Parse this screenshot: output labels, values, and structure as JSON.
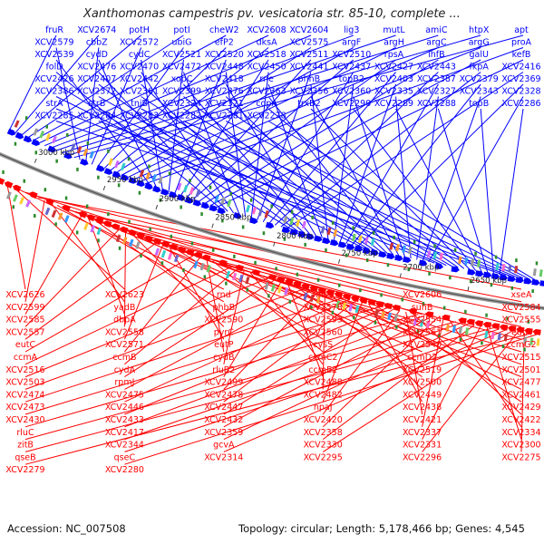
{
  "title": "Xanthomonas campestris pv. vesicatoria str. 85-10, complete ...",
  "footer": {
    "accession": "Accession: NC_007508",
    "stats": "Topology: circular; Length: 5,178,466 bp; Genes: 4,545"
  },
  "colors": {
    "plus_strand": "#0000ff",
    "minus_strand": "#ff0000",
    "backbone": "#777777",
    "rna_marks": "#2e8b2e"
  },
  "ticks": [
    "3000 kbp",
    "2950 kbp",
    "2900 kbp",
    "2850 kbp",
    "2800 kbp",
    "2750 kbp",
    "2700 kbp",
    "2650 kbp"
  ],
  "plus_strand_labels": [
    "fruR",
    "XCV2674",
    "potH",
    "potI",
    "cheW2",
    "XCV2608",
    "XCV2604",
    "lig3",
    "mutL",
    "amiC",
    "htpX",
    "apt",
    "XCV2579",
    "cbbZ",
    "XCV2572",
    "ubiG",
    "efP2",
    "dksA",
    "XCV2575",
    "argF",
    "argH",
    "argC",
    "argG",
    "proA",
    "XCV2539",
    "cydD",
    "cydC",
    "XCV2521",
    "XCV2520",
    "XCV2518",
    "XCV2511",
    "XCV2510",
    "rpsA",
    "ihfB",
    "galU",
    "kefB",
    "folD",
    "XCV2476",
    "XCV2470",
    "XCV2472",
    "XCV2448",
    "XCV2450",
    "XCV2441",
    "XCV2437",
    "XCV2427",
    "XCV2443",
    "fkpA",
    "XCV2416",
    "XCV2426",
    "XCV2407",
    "XCV2442",
    "xopC",
    "XCV2418",
    "rne",
    "phhB",
    "topB2",
    "XCV2403",
    "XCV2387",
    "XCV2379",
    "XCV2369",
    "XCV2386",
    "XCV2372",
    "XCV2361",
    "XCV2399",
    "XCV2376",
    "XCV2363",
    "XCV2356",
    "XCV2360",
    "XCV2335",
    "XCV2327",
    "XCV2343",
    "XCV2328",
    "strA",
    "strB",
    "tniB",
    "XCV2324",
    "XCV2321",
    "copA",
    "trxB2",
    "XCV2290",
    "XCV2289",
    "XCV2288",
    "topB",
    "XCV2286",
    "XCV2285",
    "XCV2284",
    "XCV2283",
    "XCV2282",
    "XCV2281",
    "XCV2278"
  ],
  "minus_strand_labels": [
    "XCV2626",
    "XCV2623",
    "rnd",
    "hns1",
    "XCV2606",
    "xseA",
    "XCV2599",
    "yadB",
    "phbB",
    "XCV2578",
    "suhB",
    "XCV2584",
    "XCV2585",
    "dbpA",
    "XCV2590",
    "XCV2593",
    "XCV2554",
    "XCV2555",
    "XCV2557",
    "XCV2558",
    "pyrC",
    "XCV2560",
    "XCV2561",
    "eutA",
    "eutC",
    "XCV2571",
    "eutP",
    "cysS",
    "XCV2540",
    "ccmG2",
    "ccmA",
    "ccmB",
    "cydB",
    "ccmC2",
    "ccmD2",
    "XCV2515",
    "XCV2516",
    "cydA",
    "rluB2",
    "ccmE2",
    "XCV2519",
    "XCV2501",
    "XCV2503",
    "rpmJ",
    "XCV2499",
    "XCV2488",
    "XCV2500",
    "XCV2477",
    "XCV2474",
    "XCV2475",
    "XCV2478",
    "XCV2482",
    "XCV2449",
    "XCV2461",
    "XCV2473",
    "XCV2446",
    "XCV2447",
    "npaJ",
    "XCV2438",
    "XCV2429",
    "XCV2430",
    "XCV2433",
    "XCV2432",
    "XCV2420",
    "XCV2421",
    "XCV2422",
    "rluC",
    "XCV2417",
    "XCV2359",
    "XCV2358",
    "XCV2337",
    "XCV2334",
    "zitB",
    "XCV2344",
    "gcvA",
    "XCV2330",
    "XCV2331",
    "XCV2300",
    "qseB",
    "qseC",
    "XCV2314",
    "XCV2295",
    "XCV2296",
    "XCV2275",
    "XCV2279",
    "XCV2280"
  ]
}
